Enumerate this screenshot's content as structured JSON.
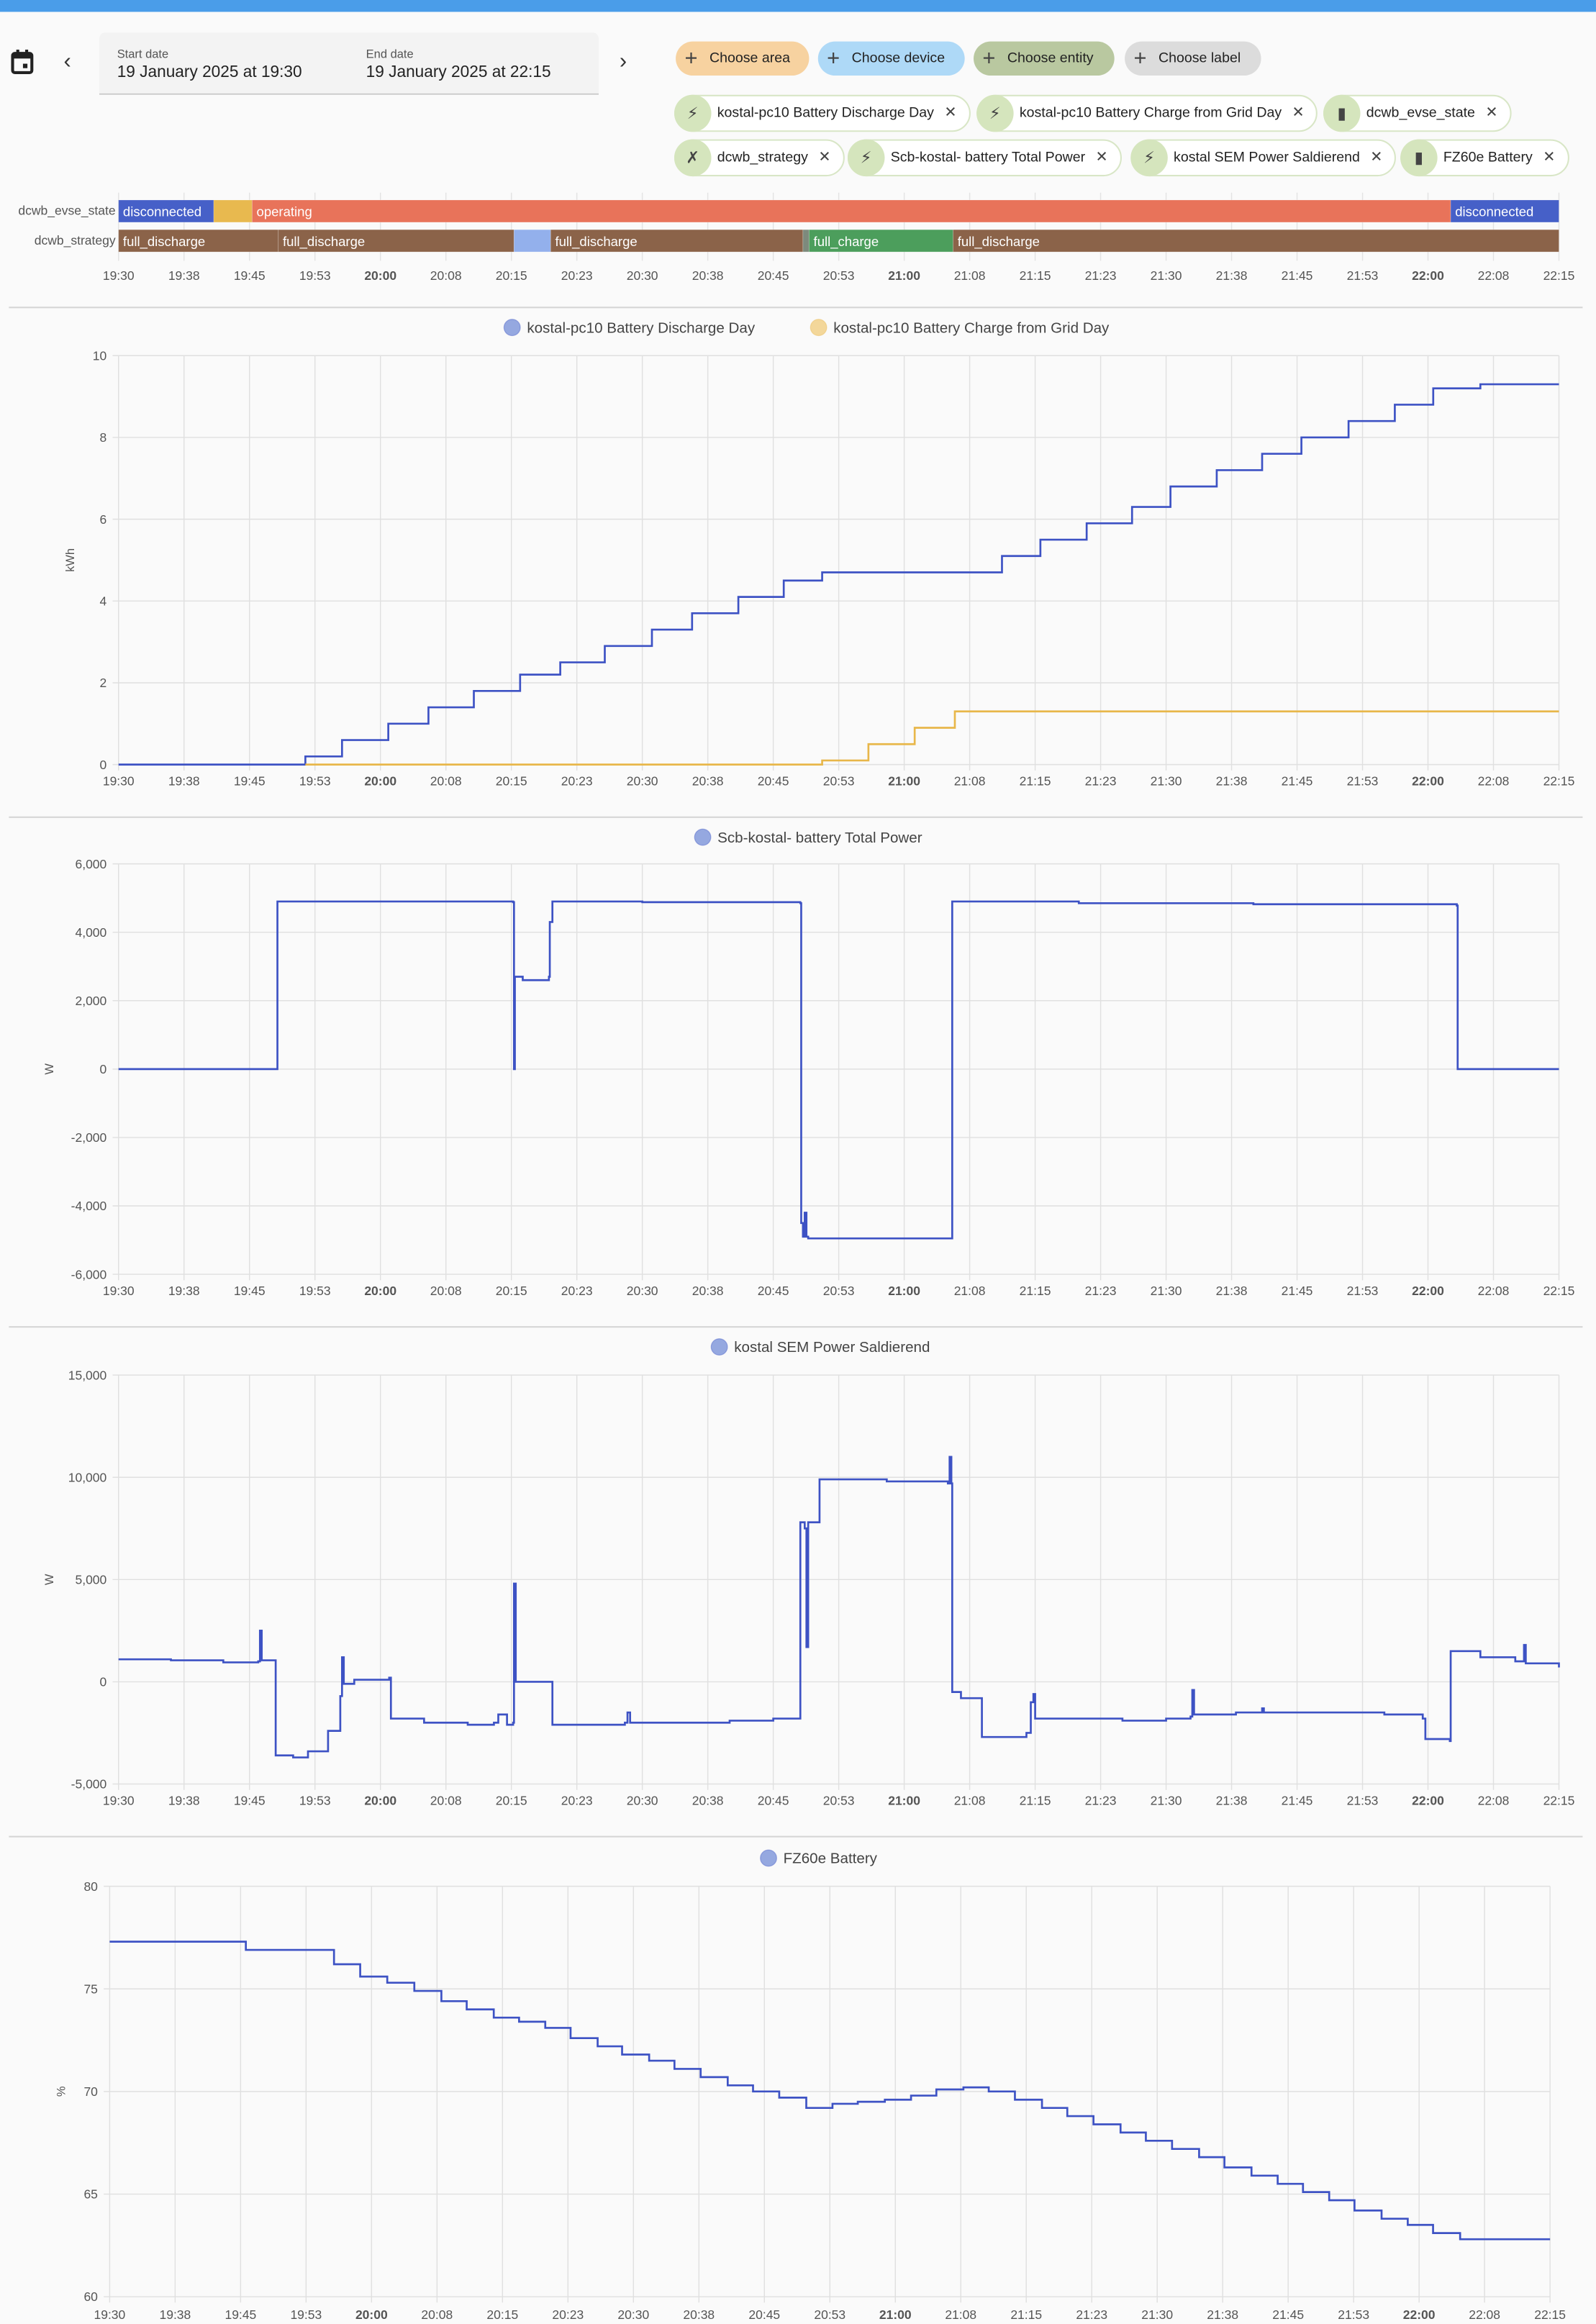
{
  "header": {
    "start_label": "Start date",
    "start_value": "19 January 2025 at 19:30",
    "end_label": "End date",
    "end_value": "19 January 2025 at 22:15",
    "prev_icon": "chevron-left-icon",
    "next_icon": "chevron-right-icon",
    "calendar_icon": "calendar-icon"
  },
  "pickers": [
    {
      "label": "Choose area",
      "color": "#f7d2a0"
    },
    {
      "label": "Choose device",
      "color": "#aed9f7"
    },
    {
      "label": "Choose entity",
      "color": "#b9c8a0"
    },
    {
      "label": "Choose label",
      "color": "#dcdcdc"
    }
  ],
  "entities": [
    {
      "label": "kostal-pc10 Battery Discharge Day",
      "icon": "lightning-icon"
    },
    {
      "label": "kostal-pc10 Battery Charge from Grid Day",
      "icon": "lightning-icon"
    },
    {
      "label": "dcwb_evse_state",
      "icon": "ev-charger-icon"
    },
    {
      "label": "dcwb_strategy",
      "icon": "strategy-icon"
    },
    {
      "label": "Scb-kostal- battery Total Power",
      "icon": "power-icon"
    },
    {
      "label": "kostal SEM Power Saldierend",
      "icon": "lightning-icon"
    },
    {
      "label": "FZ60e Battery",
      "icon": "battery-icon"
    }
  ],
  "remove_symbol": "✕",
  "x_ticks": [
    "19:30",
    "19:38",
    "19:45",
    "19:53",
    "20:00",
    "20:08",
    "20:15",
    "20:23",
    "20:30",
    "20:38",
    "20:45",
    "20:53",
    "21:00",
    "21:08",
    "21:15",
    "21:23",
    "21:30",
    "21:38",
    "21:45",
    "21:53",
    "22:00",
    "22:08",
    "22:15"
  ],
  "timeline": {
    "x_unit": "minutes after 19:30",
    "rows": [
      {
        "name": "dcwb_evse_state",
        "segments": [
          {
            "start": 0,
            "end": 10.9,
            "label": "disconnected",
            "color": "#4660c8"
          },
          {
            "start": 10.9,
            "end": 15.3,
            "label": "",
            "color": "#e8b94f"
          },
          {
            "start": 15.3,
            "end": 152.6,
            "label": "operating",
            "color": "#e8735a"
          },
          {
            "start": 152.6,
            "end": 165,
            "label": "disconnected",
            "color": "#4660c8"
          }
        ]
      },
      {
        "name": "dcwb_strategy",
        "segments": [
          {
            "start": 0,
            "end": 18.3,
            "label": "full_discharge",
            "color": "#8b6349"
          },
          {
            "start": 18.3,
            "end": 45.3,
            "label": "full_discharge",
            "color": "#8b6349"
          },
          {
            "start": 45.3,
            "end": 49.5,
            "label": "",
            "color": "#93b0ec"
          },
          {
            "start": 49.5,
            "end": 78.4,
            "label": "full_discharge",
            "color": "#8b6349"
          },
          {
            "start": 78.4,
            "end": 79.1,
            "label": "",
            "color": "#7d8a7d"
          },
          {
            "start": 79.1,
            "end": 95.6,
            "label": "full_charge",
            "color": "#4c9e5c"
          },
          {
            "start": 95.6,
            "end": 165,
            "label": "full_discharge",
            "color": "#8b6349"
          }
        ]
      }
    ]
  },
  "chart_data": [
    {
      "type": "line",
      "title": "",
      "xlabel": "",
      "ylabel": "kWh",
      "x_unit": "minutes after 19:30",
      "xlim": [
        0,
        165
      ],
      "ylim": [
        0,
        10
      ],
      "y_ticks": [
        "0",
        "2",
        "4",
        "6",
        "8",
        "10"
      ],
      "y_tick_values": [
        0,
        2,
        4,
        6,
        8,
        10
      ],
      "grid": true,
      "legend": "top-center",
      "series": [
        {
          "name": "kostal-pc10 Battery Discharge Day",
          "color": "#3d52c4",
          "legend_color": "#95a8e0",
          "points": [
            [
              0,
              0
            ],
            [
              21.4,
              0.2
            ],
            [
              25.6,
              0.6
            ],
            [
              30.9,
              1.0
            ],
            [
              35.5,
              1.4
            ],
            [
              40.7,
              1.8
            ],
            [
              46,
              2.2
            ],
            [
              50.6,
              2.5
            ],
            [
              55.7,
              2.9
            ],
            [
              61.1,
              3.3
            ],
            [
              65.7,
              3.7
            ],
            [
              71,
              4.1
            ],
            [
              76.2,
              4.5
            ],
            [
              80.6,
              4.7
            ],
            [
              101.2,
              5.1
            ],
            [
              105.6,
              5.5
            ],
            [
              110.9,
              5.9
            ],
            [
              116.1,
              6.3
            ],
            [
              120.5,
              6.8
            ],
            [
              125.8,
              7.2
            ],
            [
              131,
              7.6
            ],
            [
              135.5,
              8.0
            ],
            [
              140.9,
              8.4
            ],
            [
              146.2,
              8.8
            ],
            [
              150.6,
              9.2
            ],
            [
              156,
              9.3
            ],
            [
              165,
              9.3
            ]
          ]
        },
        {
          "name": "kostal-pc10 Battery Charge from Grid Day",
          "color": "#e8b74a",
          "legend_color": "#f3d79a",
          "points": [
            [
              21.4,
              0
            ],
            [
              80.6,
              0.1
            ],
            [
              85.9,
              0.5
            ],
            [
              91.2,
              0.9
            ],
            [
              95.8,
              1.3
            ],
            [
              165,
              1.3
            ]
          ]
        }
      ]
    },
    {
      "type": "line",
      "title": "",
      "xlabel": "",
      "ylabel": "W",
      "x_unit": "minutes after 19:30",
      "xlim": [
        0,
        165
      ],
      "ylim": [
        -6000,
        6000
      ],
      "y_ticks": [
        "-6,000",
        "-4,000",
        "-2,000",
        "0",
        "2,000",
        "4,000",
        "6,000"
      ],
      "y_tick_values": [
        -6000,
        -4000,
        -2000,
        0,
        2000,
        4000,
        6000
      ],
      "grid": true,
      "legend": "top-center",
      "series": [
        {
          "name": "Scb-kostal- battery Total Power",
          "color": "#3d52c4",
          "legend_color": "#95a8e0",
          "points": [
            [
              0,
              0
            ],
            [
              18.2,
              4900
            ],
            [
              45.2,
              4880
            ],
            [
              45.3,
              0
            ],
            [
              45.4,
              2700
            ],
            [
              46.3,
              2600
            ],
            [
              49.3,
              2700
            ],
            [
              49.4,
              4300
            ],
            [
              49.7,
              4900
            ],
            [
              60,
              4880
            ],
            [
              78.1,
              4850
            ],
            [
              78.2,
              -4500
            ],
            [
              78.4,
              -4900
            ],
            [
              78.6,
              -4200
            ],
            [
              78.8,
              -4900
            ],
            [
              79,
              -4950
            ],
            [
              95.4,
              -4950
            ],
            [
              95.5,
              4900
            ],
            [
              110,
              4850
            ],
            [
              130,
              4820
            ],
            [
              153.3,
              4780
            ],
            [
              153.4,
              0
            ],
            [
              165,
              0
            ]
          ]
        }
      ]
    },
    {
      "type": "line",
      "title": "",
      "xlabel": "",
      "ylabel": "W",
      "x_unit": "minutes after 19:30",
      "xlim": [
        0,
        165
      ],
      "ylim": [
        -5000,
        15000
      ],
      "y_ticks": [
        "-5,000",
        "0",
        "5,000",
        "10,000",
        "15,000"
      ],
      "y_tick_values": [
        -5000,
        0,
        5000,
        10000,
        15000
      ],
      "grid": true,
      "legend": "top-center",
      "series": [
        {
          "name": "kostal SEM Power Saldierend",
          "color": "#3d52c4",
          "legend_color": "#95a8e0",
          "points": [
            [
              0,
              1100
            ],
            [
              6,
              1050
            ],
            [
              12,
              950
            ],
            [
              16,
              1000
            ],
            [
              16.2,
              2500
            ],
            [
              16.4,
              1050
            ],
            [
              18,
              -3600
            ],
            [
              20,
              -3700
            ],
            [
              21.7,
              -3400
            ],
            [
              24,
              -2400
            ],
            [
              25.4,
              -700
            ],
            [
              25.6,
              1200
            ],
            [
              25.8,
              -100
            ],
            [
              27,
              100
            ],
            [
              31,
              200
            ],
            [
              31.2,
              -1800
            ],
            [
              35,
              -2000
            ],
            [
              40,
              -2100
            ],
            [
              43,
              -2000
            ],
            [
              43.5,
              -1600
            ],
            [
              44.5,
              -2100
            ],
            [
              45.2,
              -2000
            ],
            [
              45.3,
              4800
            ],
            [
              45.5,
              0
            ],
            [
              49.7,
              -2100
            ],
            [
              58,
              -2000
            ],
            [
              58.3,
              -1500
            ],
            [
              58.6,
              -2000
            ],
            [
              70,
              -1900
            ],
            [
              75,
              -1800
            ],
            [
              78.1,
              7800
            ],
            [
              78.6,
              7500
            ],
            [
              78.8,
              1700
            ],
            [
              79,
              7800
            ],
            [
              80.3,
              9900
            ],
            [
              88,
              9800
            ],
            [
              95,
              9700
            ],
            [
              95.2,
              11000
            ],
            [
              95.4,
              9700
            ],
            [
              95.5,
              -500
            ],
            [
              96.5,
              -800
            ],
            [
              98.9,
              -2700
            ],
            [
              104,
              -2500
            ],
            [
              104.5,
              -1000
            ],
            [
              104.8,
              -600
            ],
            [
              105,
              -1800
            ],
            [
              115,
              -1900
            ],
            [
              120,
              -1800
            ],
            [
              122.8,
              -1700
            ],
            [
              123,
              -400
            ],
            [
              123.2,
              -1600
            ],
            [
              128,
              -1500
            ],
            [
              131,
              -1300
            ],
            [
              131.2,
              -1500
            ],
            [
              140,
              -1500
            ],
            [
              145,
              -1600
            ],
            [
              149.4,
              -1800
            ],
            [
              149.7,
              -2800
            ],
            [
              152.5,
              -2900
            ],
            [
              152.6,
              1500
            ],
            [
              156,
              1200
            ],
            [
              160,
              1000
            ],
            [
              161,
              1800
            ],
            [
              161.2,
              900
            ],
            [
              165,
              700
            ]
          ]
        }
      ]
    },
    {
      "type": "line",
      "title": "",
      "xlabel": "",
      "ylabel": "%",
      "x_unit": "minutes after 19:30",
      "xlim": [
        0,
        165
      ],
      "ylim": [
        60,
        80
      ],
      "y_ticks": [
        "60",
        "65",
        "70",
        "75",
        "80"
      ],
      "y_tick_values": [
        60,
        65,
        70,
        75,
        80
      ],
      "grid": true,
      "legend": "top-center",
      "series": [
        {
          "name": "FZ60e Battery",
          "color": "#3d52c4",
          "legend_color": "#95a8e0",
          "points": [
            [
              0,
              77.3
            ],
            [
              15.6,
              76.9
            ],
            [
              25.7,
              76.2
            ],
            [
              28.7,
              75.6
            ],
            [
              31.8,
              75.3
            ],
            [
              34.9,
              74.9
            ],
            [
              38,
              74.4
            ],
            [
              40.9,
              74.0
            ],
            [
              44,
              73.6
            ],
            [
              46.9,
              73.4
            ],
            [
              49.9,
              73.1
            ],
            [
              52.8,
              72.6
            ],
            [
              55.9,
              72.2
            ],
            [
              58.7,
              71.8
            ],
            [
              61.8,
              71.5
            ],
            [
              64.7,
              71.1
            ],
            [
              67.7,
              70.7
            ],
            [
              70.8,
              70.3
            ],
            [
              73.7,
              70.0
            ],
            [
              76.7,
              69.7
            ],
            [
              79.8,
              69.2
            ],
            [
              82.8,
              69.4
            ],
            [
              85.7,
              69.5
            ],
            [
              88.8,
              69.6
            ],
            [
              91.8,
              69.8
            ],
            [
              94.7,
              70.1
            ],
            [
              97.8,
              70.2
            ],
            [
              100.7,
              70.0
            ],
            [
              103.7,
              69.6
            ],
            [
              106.8,
              69.2
            ],
            [
              109.7,
              68.8
            ],
            [
              112.7,
              68.4
            ],
            [
              115.8,
              68.0
            ],
            [
              118.7,
              67.6
            ],
            [
              121.7,
              67.2
            ],
            [
              124.8,
              66.8
            ],
            [
              127.7,
              66.3
            ],
            [
              130.8,
              65.9
            ],
            [
              133.8,
              65.5
            ],
            [
              136.7,
              65.1
            ],
            [
              139.7,
              64.7
            ],
            [
              142.6,
              64.2
            ],
            [
              145.7,
              63.8
            ],
            [
              148.7,
              63.5
            ],
            [
              151.6,
              63.1
            ],
            [
              154.7,
              62.8
            ],
            [
              165,
              62.8
            ]
          ]
        }
      ]
    }
  ]
}
